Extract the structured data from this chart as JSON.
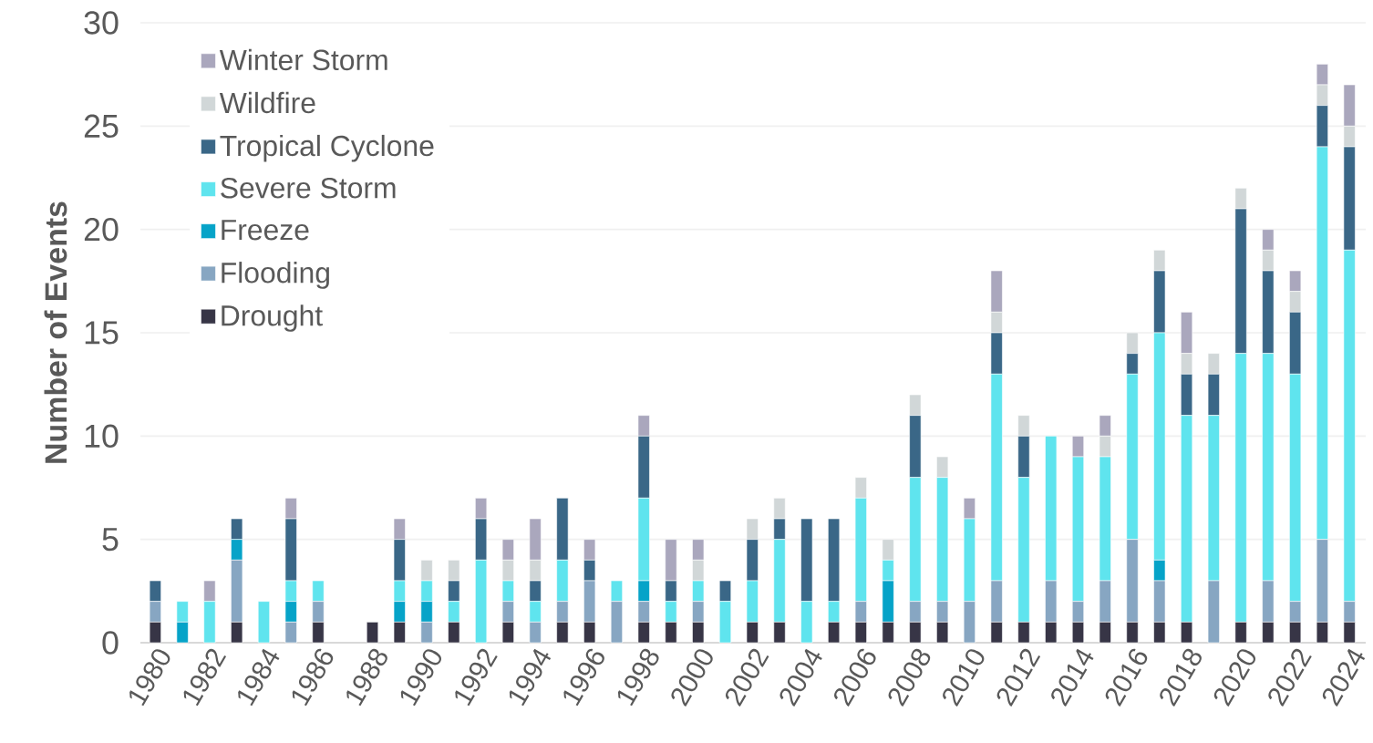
{
  "chart_data": {
    "type": "bar",
    "stacked": true,
    "ylabel": "Number of Events",
    "categories": [
      "1980",
      null,
      "1982",
      null,
      "1984",
      null,
      "1986",
      null,
      "1988",
      null,
      "1990",
      null,
      "1992",
      null,
      "1994",
      null,
      "1996",
      null,
      "1998",
      null,
      "2000",
      null,
      "2002",
      null,
      "2004",
      null,
      "2006",
      null,
      "2008",
      null,
      "2010",
      null,
      "2012",
      null,
      "2014",
      null,
      "2016",
      null,
      "2018",
      null,
      "2020",
      null,
      "2022",
      null,
      "2024"
    ],
    "series": [
      {
        "name": "Drought",
        "color": "#373546",
        "values": [
          1,
          0,
          0,
          1,
          0,
          0,
          1,
          0,
          1,
          1,
          0,
          1,
          0,
          1,
          0,
          1,
          1,
          0,
          1,
          1,
          1,
          0,
          1,
          1,
          0,
          1,
          1,
          1,
          1,
          1,
          0,
          1,
          1,
          1,
          1,
          1,
          1,
          1,
          1,
          0,
          1,
          1,
          1,
          1,
          1
        ]
      },
      {
        "name": "Flooding",
        "color": "#87a6c2",
        "values": [
          1,
          0,
          0,
          3,
          0,
          1,
          1,
          0,
          0,
          0,
          1,
          0,
          0,
          1,
          1,
          1,
          2,
          2,
          1,
          0,
          1,
          0,
          0,
          0,
          0,
          0,
          1,
          0,
          1,
          1,
          2,
          2,
          0,
          2,
          1,
          2,
          4,
          2,
          0,
          3,
          0,
          2,
          1,
          4,
          1
        ]
      },
      {
        "name": "Freeze",
        "color": "#06a3c8",
        "values": [
          0,
          1,
          0,
          1,
          0,
          1,
          0,
          0,
          0,
          1,
          1,
          0,
          0,
          0,
          0,
          0,
          0,
          0,
          1,
          0,
          0,
          0,
          0,
          0,
          0,
          0,
          0,
          2,
          0,
          0,
          0,
          0,
          0,
          0,
          0,
          0,
          0,
          1,
          0,
          0,
          0,
          0,
          0,
          0,
          0
        ]
      },
      {
        "name": "Severe Storm",
        "color": "#5fe4ee",
        "values": [
          0,
          1,
          2,
          0,
          2,
          1,
          1,
          0,
          0,
          1,
          1,
          1,
          4,
          1,
          1,
          2,
          0,
          1,
          4,
          1,
          1,
          2,
          2,
          4,
          2,
          1,
          5,
          1,
          6,
          6,
          4,
          10,
          7,
          7,
          7,
          6,
          8,
          11,
          10,
          8,
          13,
          11,
          11,
          19,
          17
        ]
      },
      {
        "name": "Tropical Cyclone",
        "color": "#3a6787",
        "values": [
          1,
          0,
          0,
          1,
          0,
          3,
          0,
          0,
          0,
          2,
          0,
          1,
          2,
          0,
          1,
          3,
          1,
          0,
          3,
          1,
          0,
          1,
          2,
          1,
          4,
          4,
          0,
          0,
          3,
          0,
          0,
          2,
          2,
          0,
          0,
          0,
          1,
          3,
          2,
          2,
          7,
          4,
          3,
          2,
          5
        ]
      },
      {
        "name": "Wildfire",
        "color": "#d1d7d8",
        "values": [
          0,
          0,
          0,
          0,
          0,
          0,
          0,
          0,
          0,
          0,
          1,
          1,
          0,
          1,
          1,
          0,
          0,
          0,
          0,
          0,
          1,
          0,
          1,
          1,
          0,
          0,
          1,
          1,
          1,
          1,
          0,
          1,
          1,
          0,
          0,
          1,
          1,
          1,
          1,
          1,
          1,
          1,
          1,
          1,
          1
        ]
      },
      {
        "name": "Winter Storm",
        "color": "#aaa7bd",
        "values": [
          0,
          0,
          1,
          0,
          0,
          1,
          0,
          0,
          0,
          1,
          0,
          0,
          1,
          1,
          2,
          0,
          1,
          0,
          1,
          2,
          1,
          0,
          0,
          0,
          0,
          0,
          0,
          0,
          0,
          0,
          1,
          2,
          0,
          0,
          1,
          1,
          0,
          0,
          2,
          0,
          0,
          1,
          1,
          1,
          2
        ]
      }
    ],
    "ylim": [
      0,
      30
    ],
    "yticks": [
      0,
      5,
      10,
      15,
      20,
      25,
      30
    ],
    "grid": "y",
    "legend": "top left"
  }
}
